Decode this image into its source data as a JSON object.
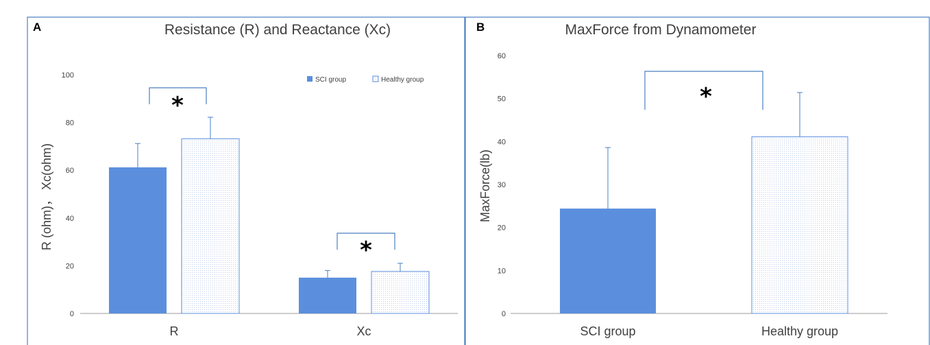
{
  "colors": {
    "sci": "#5b8fdd",
    "healthy_fill": "#ffffff",
    "healthy_stroke": "#5b8fdd",
    "border": "#4a7fc1"
  },
  "chart_data": [
    {
      "panel": "A",
      "type": "bar",
      "title": "Resistance (R) and Reactance (Xc)",
      "ylabel": "R (ohm)， Xc(ohm)",
      "xlabel": "",
      "ylim": [
        0,
        100
      ],
      "yticks": [
        "0",
        "20",
        "40",
        "60",
        "80",
        "100"
      ],
      "categories": [
        "R",
        "Xc"
      ],
      "legend_position": "top-right",
      "series": [
        {
          "name": "SCI group",
          "values": [
            61.2,
            15.0
          ],
          "errors": [
            10.0,
            3.0
          ]
        },
        {
          "name": "Healthy group",
          "values": [
            73.2,
            17.6
          ],
          "errors": [
            9.0,
            3.4
          ]
        }
      ],
      "significance": [
        "*",
        "*"
      ]
    },
    {
      "panel": "B",
      "type": "bar",
      "title": "MaxForce from Dynamometer",
      "ylabel": "MaxForce(lb)",
      "xlabel": "",
      "ylim": [
        0,
        60
      ],
      "yticks": [
        "0",
        "10",
        "20",
        "30",
        "40",
        "50",
        "60"
      ],
      "categories": [
        "SCI group",
        "Healthy group"
      ],
      "values": [
        24.4,
        41.1
      ],
      "errors": [
        14.2,
        10.3
      ],
      "significance": [
        "*"
      ]
    }
  ]
}
